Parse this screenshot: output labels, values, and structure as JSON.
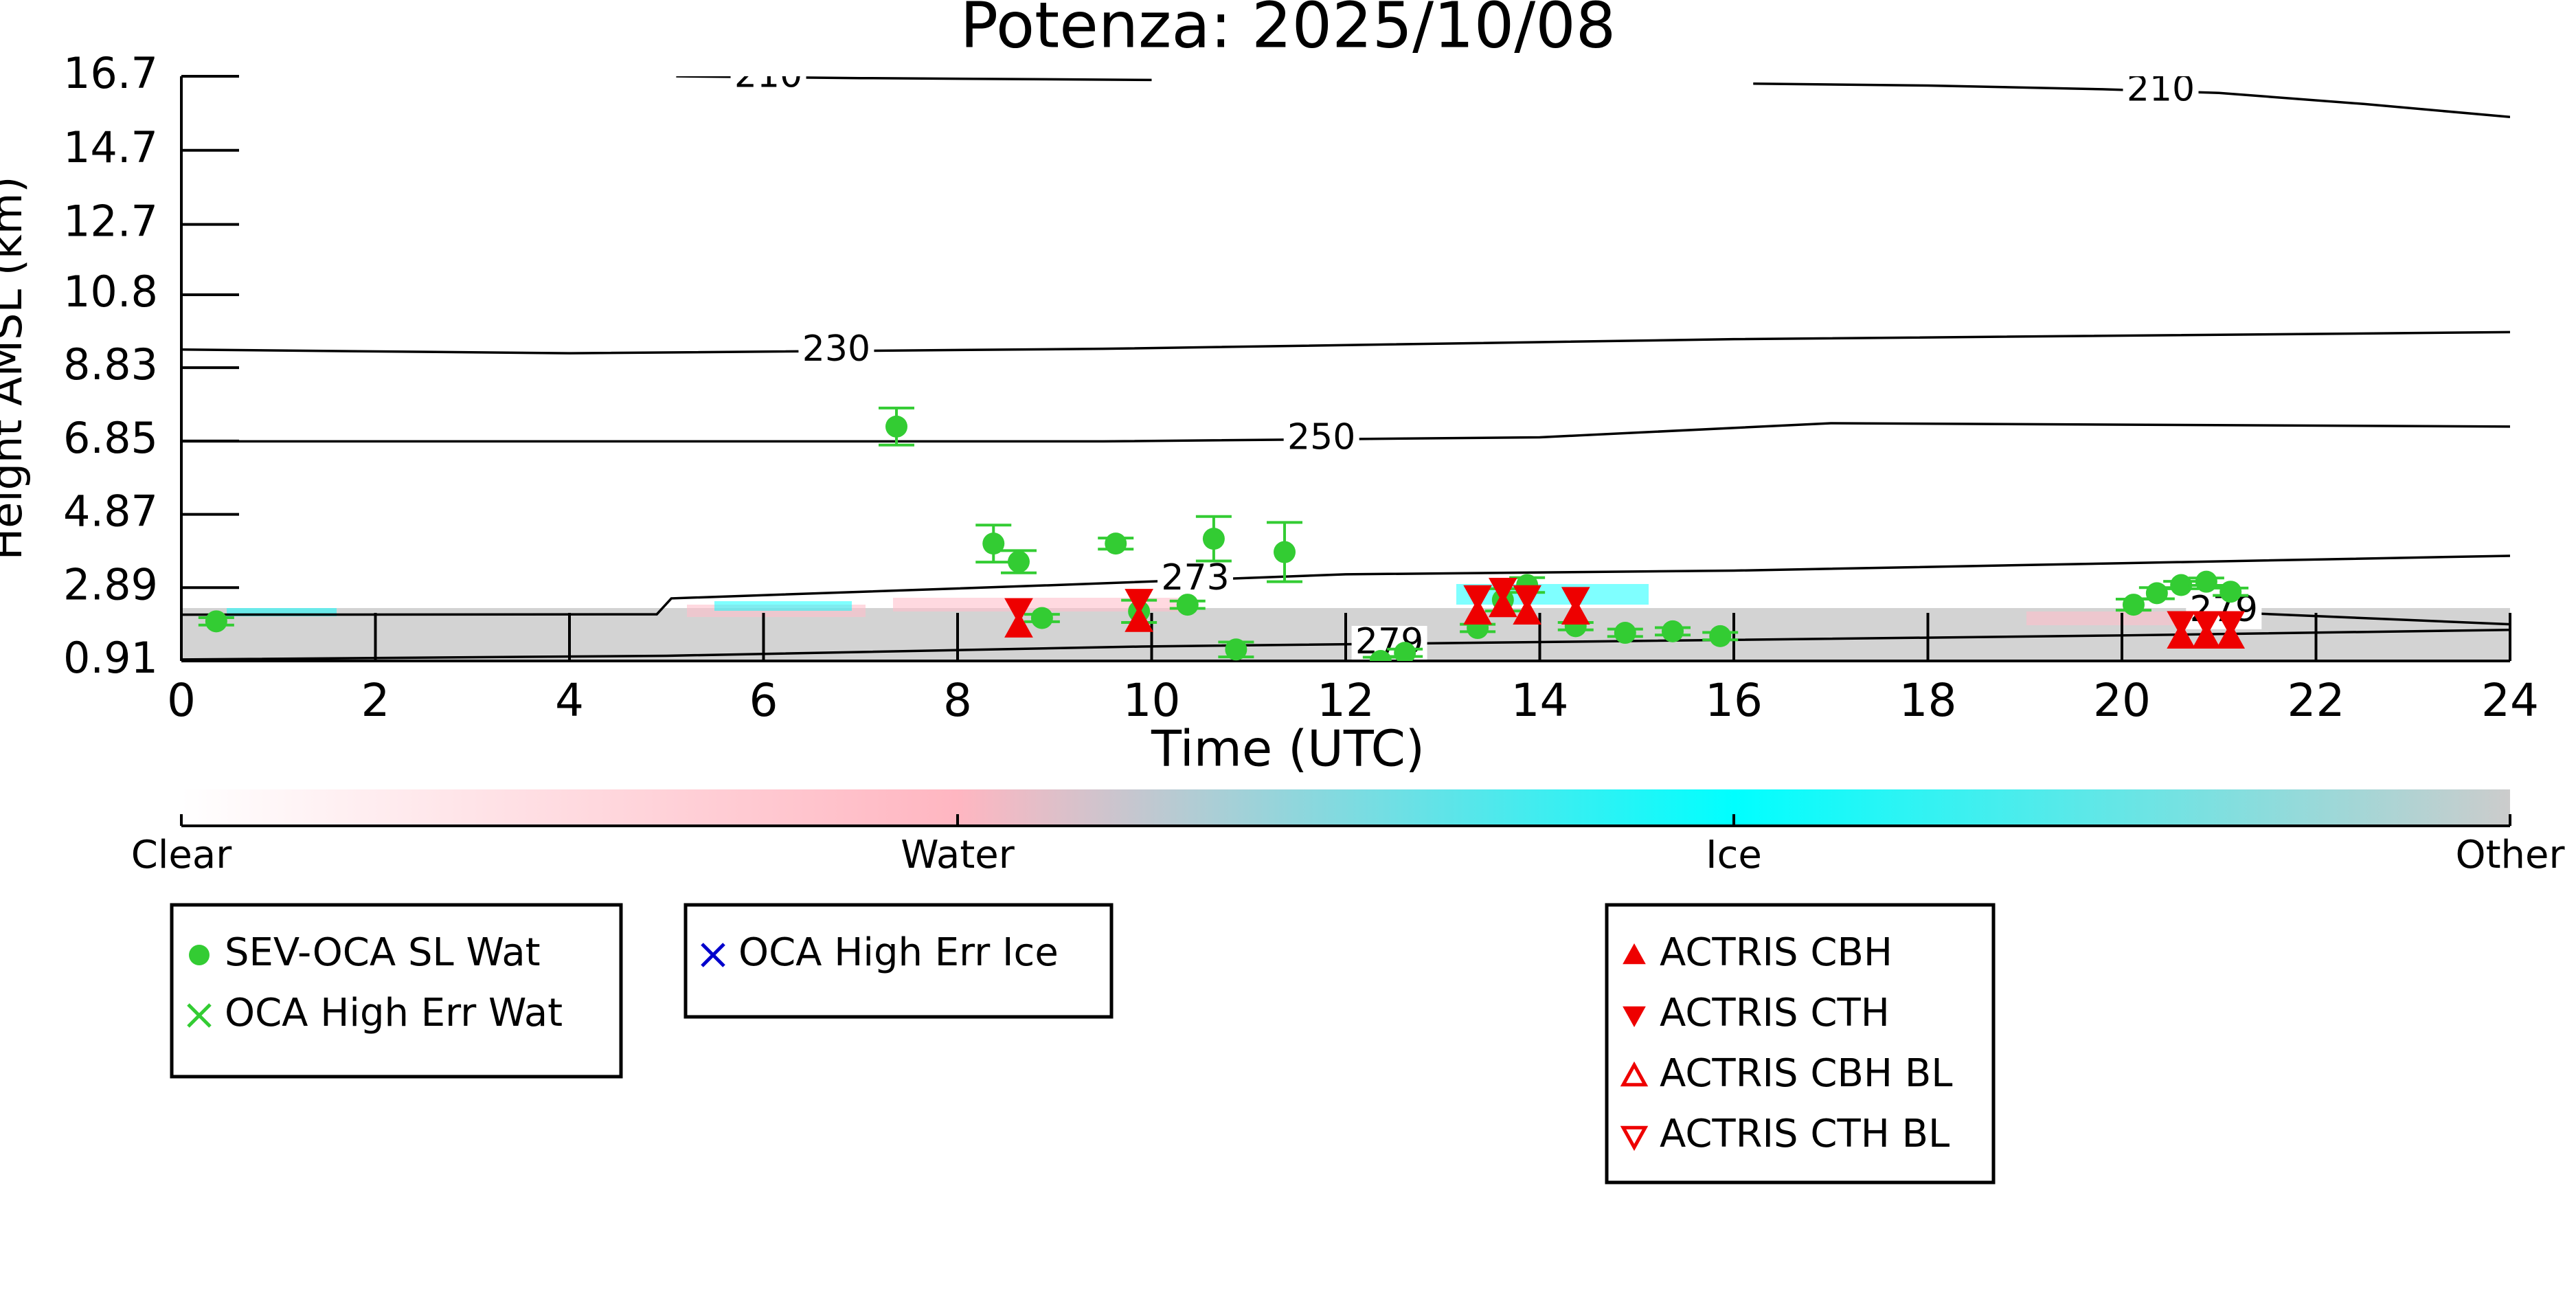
{
  "chart_data": {
    "type": "scatter",
    "title": "Potenza: 2025/10/08",
    "x_label": "Time (UTC)",
    "y_label": "Height AMSL (km)",
    "xlim": [
      0,
      24
    ],
    "xticks": [
      0,
      2,
      4,
      6,
      8,
      10,
      12,
      14,
      16,
      18,
      20,
      22,
      24
    ],
    "ylim": [
      0.91,
      16.7
    ],
    "yticks": [
      0.91,
      2.89,
      4.87,
      6.85,
      8.83,
      10.8,
      12.7,
      14.7,
      16.7
    ],
    "series": [
      {
        "name": "SEV-OCA SL Wat",
        "color": "#33cc33",
        "marker": "circle",
        "x": [
          0.36,
          7.37,
          8.37,
          8.63,
          8.87,
          9.63,
          9.87,
          10.37,
          10.64,
          10.87,
          11.37,
          12.36,
          12.61,
          13.36,
          13.62,
          13.87,
          14.37,
          14.88,
          15.37,
          15.86,
          20.12,
          20.36,
          20.61,
          20.87,
          21.12
        ],
        "values": [
          1.98,
          7.24,
          4.08,
          3.59,
          2.07,
          4.08,
          2.25,
          2.43,
          4.21,
          1.22,
          3.85,
          0.91,
          1.13,
          1.8,
          2.56,
          2.96,
          1.85,
          1.67,
          1.71,
          1.58,
          2.43,
          2.74,
          2.96,
          3.05,
          2.78
        ],
        "errors": [
          0.1,
          0.5,
          0.5,
          0.3,
          0.1,
          0.15,
          0.3,
          0.1,
          0.6,
          0.2,
          0.8,
          0.1,
          0.1,
          0.1,
          0.3,
          0.2,
          0.1,
          0.1,
          0.1,
          0.1,
          0.15,
          0.15,
          0.1,
          0.1,
          0.1
        ]
      },
      {
        "name": "OCA High Err Wat",
        "color": "#33cc33",
        "marker": "x",
        "x": [],
        "values": []
      },
      {
        "name": "OCA High Err Ice",
        "color": "#0000cc",
        "marker": "x",
        "x": [],
        "values": []
      },
      {
        "name": "ACTRIS CBH",
        "color": "#ee0000",
        "marker": "triangle-up",
        "x": [
          8.63,
          9.87,
          13.36,
          13.62,
          13.87,
          14.37,
          20.61,
          20.87,
          21.12
        ],
        "values": [
          1.85,
          2.0,
          2.2,
          2.4,
          2.2,
          2.2,
          1.55,
          1.55,
          1.55
        ]
      },
      {
        "name": "ACTRIS CTH",
        "color": "#ee0000",
        "marker": "triangle-down",
        "x": [
          8.63,
          9.87,
          13.36,
          13.62,
          13.87,
          14.37,
          20.61,
          20.87,
          21.12
        ],
        "values": [
          2.3,
          2.55,
          2.65,
          2.85,
          2.65,
          2.6,
          1.95,
          1.95,
          1.95
        ]
      },
      {
        "name": "ACTRIS CBH BL",
        "color": "#ee0000",
        "marker": "triangle-up-open",
        "x": [],
        "values": []
      },
      {
        "name": "ACTRIS CTH BL",
        "color": "#ee0000",
        "marker": "triangle-down-open",
        "x": [],
        "values": []
      }
    ],
    "contours": [
      {
        "level": 210,
        "x": [
          5.1,
          7,
          10
        ],
        "values": [
          16.7,
          16.65,
          16.6
        ]
      },
      {
        "level": 210,
        "x": [
          16.2,
          18,
          19.8,
          21,
          22.5,
          24
        ],
        "values": [
          16.5,
          16.45,
          16.35,
          16.25,
          15.95,
          15.6
        ]
      },
      {
        "level": 230,
        "x": [
          0,
          4,
          9.5,
          16,
          24
        ],
        "values": [
          9.32,
          9.22,
          9.34,
          9.6,
          9.79
        ]
      },
      {
        "level": 250,
        "x": [
          0,
          5,
          9.5,
          14,
          17,
          24
        ],
        "values": [
          6.84,
          6.84,
          6.84,
          6.95,
          7.33,
          7.24
        ]
      },
      {
        "level": 273,
        "x": [
          0,
          4.9,
          5.05,
          8.9,
          12,
          16,
          20,
          24
        ],
        "values": [
          2.16,
          2.17,
          2.6,
          2.95,
          3.25,
          3.35,
          3.55,
          3.75
        ]
      },
      {
        "level": 279,
        "x": [
          0,
          5,
          9.9,
          15,
          20,
          24
        ],
        "values": [
          0.95,
          1.05,
          1.3,
          1.45,
          1.6,
          1.75
        ]
      },
      {
        "level": 279,
        "x": [
          20.8,
          21.3,
          24
        ],
        "values": [
          2.3,
          2.2,
          1.9
        ]
      }
    ],
    "colorbar": {
      "labels": [
        "Clear",
        "Water",
        "Ice",
        "Other"
      ]
    }
  }
}
